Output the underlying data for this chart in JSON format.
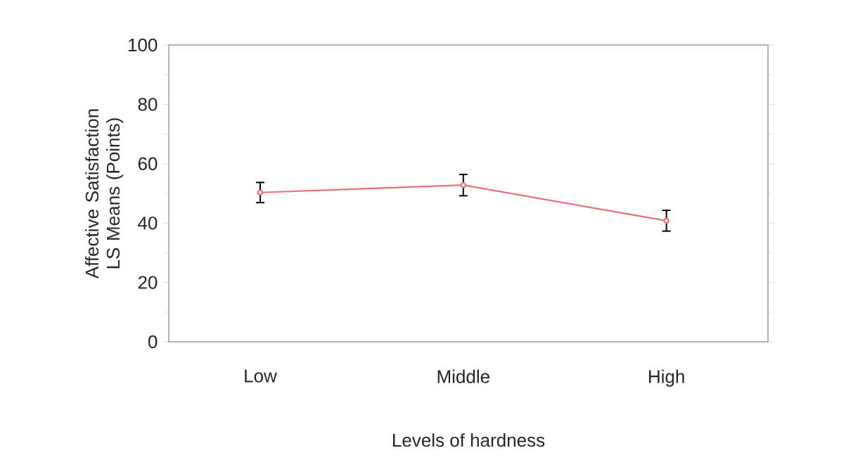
{
  "chart_data": {
    "type": "line",
    "xlabel": "Levels of hardness",
    "ylabel": "Affective Satisfaction\nLS Means (Points)",
    "categories": [
      "Low",
      "Middle",
      "High"
    ],
    "series": [
      {
        "color": "#e8707a",
        "values": [
          50.3,
          52.8,
          40.8
        ],
        "errors": [
          3.4,
          3.6,
          3.5
        ]
      }
    ],
    "ylim": [
      0,
      100
    ],
    "yticks": [
      0,
      20,
      40,
      60,
      80,
      100
    ],
    "marker": "circle",
    "line_style": "solid"
  }
}
